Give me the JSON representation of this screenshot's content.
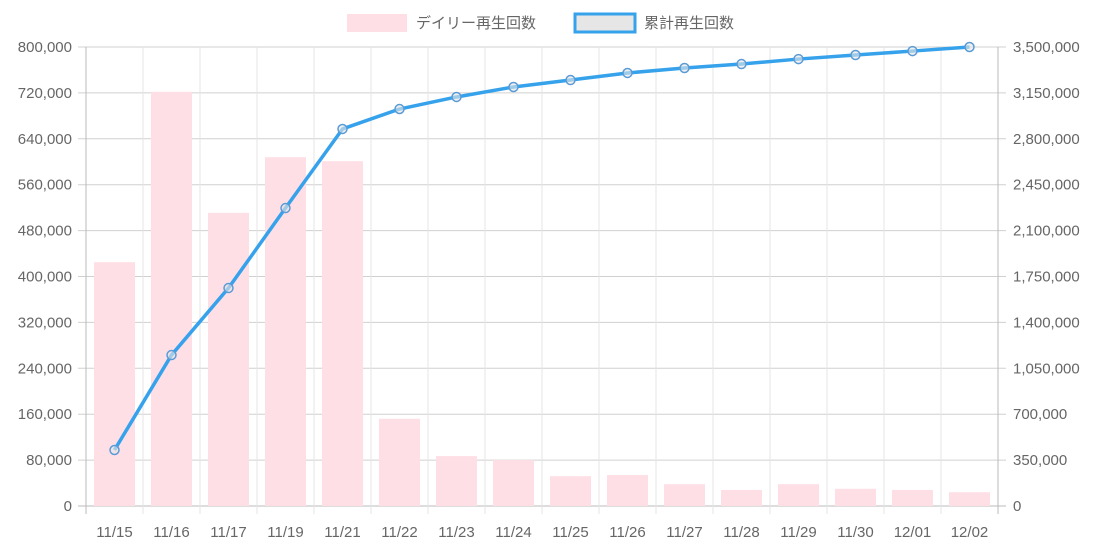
{
  "chart_data": {
    "type": "bar",
    "categories": [
      "11/15",
      "11/16",
      "11/17",
      "11/19",
      "11/21",
      "11/22",
      "11/23",
      "11/24",
      "11/25",
      "11/26",
      "11/27",
      "11/28",
      "11/29",
      "11/30",
      "12/01",
      "12/02"
    ],
    "series": [
      {
        "name": "デイリー再生回数",
        "type": "bar",
        "axis": "left",
        "color": "#ffdfe6",
        "values": [
          425000,
          722000,
          511000,
          608000,
          601000,
          152000,
          87000,
          80000,
          52000,
          54000,
          38000,
          28000,
          38000,
          30000,
          28000,
          24000
        ]
      },
      {
        "name": "累計再生回数",
        "type": "line",
        "axis": "right",
        "color": "#36a2eb",
        "values": [
          427000,
          1151000,
          1662000,
          2272000,
          2875000,
          3027000,
          3119000,
          3195000,
          3248000,
          3302000,
          3340000,
          3370000,
          3408000,
          3439000,
          3469000,
          3500000
        ]
      }
    ],
    "y_left": {
      "range": [
        0,
        800000
      ],
      "ticks": [
        "0",
        "80,000",
        "160,000",
        "240,000",
        "320,000",
        "400,000",
        "480,000",
        "560,000",
        "640,000",
        "720,000",
        "800,000"
      ]
    },
    "y_right": {
      "range": [
        0,
        3500000
      ],
      "ticks": [
        "0",
        "350,000",
        "700,000",
        "1,050,000",
        "1,400,000",
        "1,750,000",
        "2,100,000",
        "2,450,000",
        "2,800,000",
        "3,150,000",
        "3,500,000"
      ]
    },
    "grid": true,
    "legend": "top-center"
  }
}
